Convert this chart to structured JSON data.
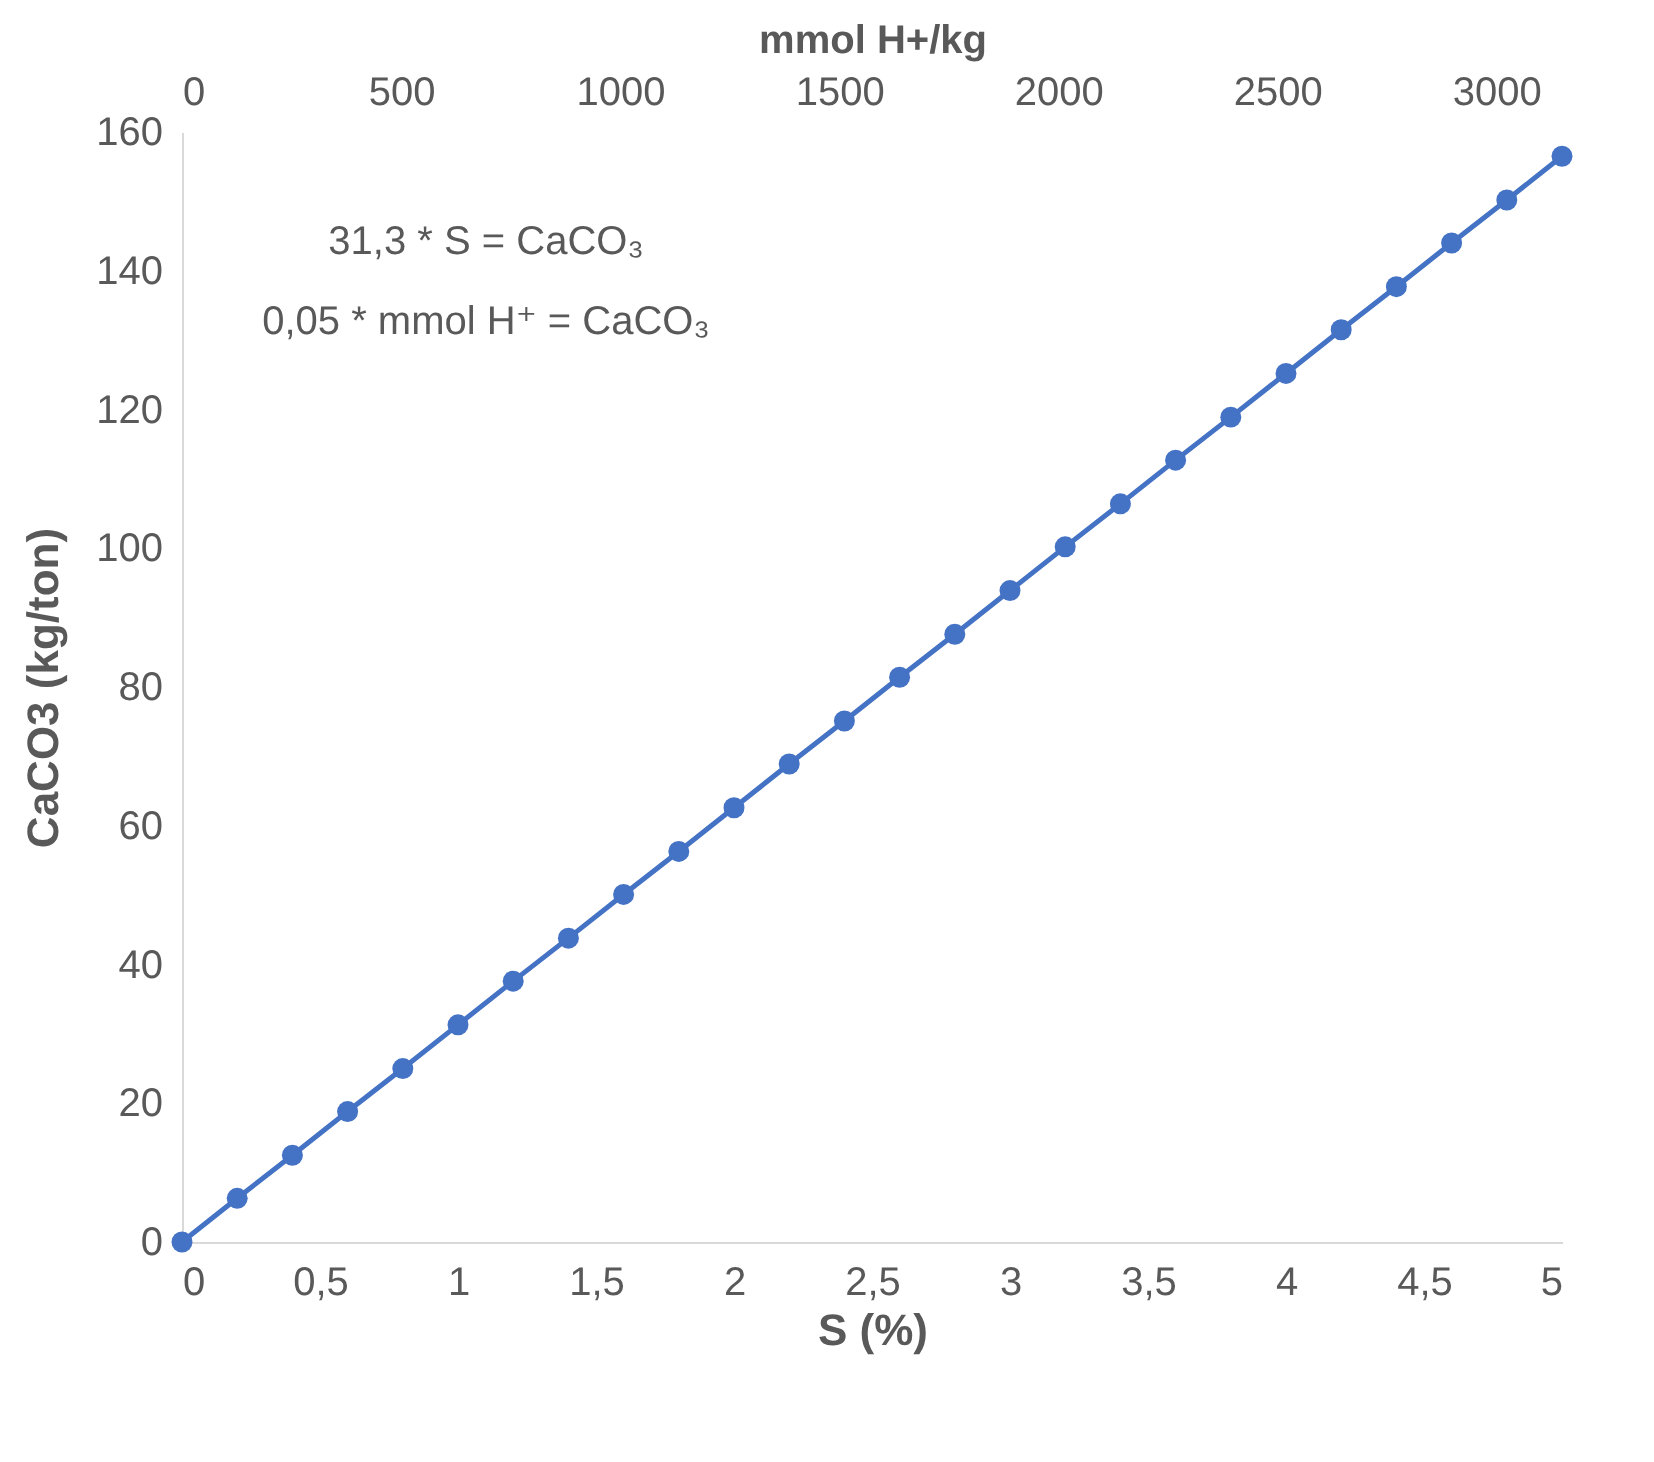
{
  "chart_data": {
    "type": "line",
    "xlabel": "S (%)",
    "ylabel": "CaCO3 (kg/ton)",
    "x2label": "mmol H+/kg",
    "annotations": [
      "31,3 * S = CaCO₃",
      "0,05 * mmol H⁺ = CaCO₃"
    ],
    "x": [
      0,
      0.2,
      0.4,
      0.6,
      0.8,
      1,
      1.2,
      1.4,
      1.6,
      1.8,
      2,
      2.2,
      2.4,
      2.6,
      2.8,
      3,
      3.2,
      3.4,
      3.6,
      3.8,
      4,
      4.2,
      4.4,
      4.6,
      4.8,
      5
    ],
    "series": [
      {
        "color": "#4472c4",
        "values": [
          0,
          6.3,
          12.5,
          18.8,
          25,
          31.3,
          37.6,
          43.8,
          50.1,
          56.3,
          62.6,
          68.9,
          75.1,
          81.4,
          87.6,
          93.9,
          100.2,
          106.4,
          112.7,
          118.9,
          125.2,
          131.5,
          137.7,
          144,
          150.2,
          156.5
        ]
      }
    ],
    "xlim": [
      0,
      5
    ],
    "xticks": [
      0,
      {
        "value": 0.5,
        "label": "0,5"
      },
      1,
      {
        "value": 1.5,
        "label": "1,5"
      },
      2,
      {
        "value": 2.5,
        "label": "2,5"
      },
      3,
      {
        "value": 3.5,
        "label": "3,5"
      },
      4,
      {
        "value": 4.5,
        "label": "4,5"
      },
      5
    ],
    "x2lim": [
      0,
      3150
    ],
    "x2ticks": [
      0,
      500,
      1000,
      1500,
      2000,
      2500,
      3000
    ],
    "ylim": [
      0,
      160
    ],
    "yticks": [
      0,
      20,
      40,
      60,
      80,
      100,
      120,
      140,
      160
    ],
    "grid": false,
    "legend": false,
    "marker": "circle",
    "line_style": "solid"
  }
}
